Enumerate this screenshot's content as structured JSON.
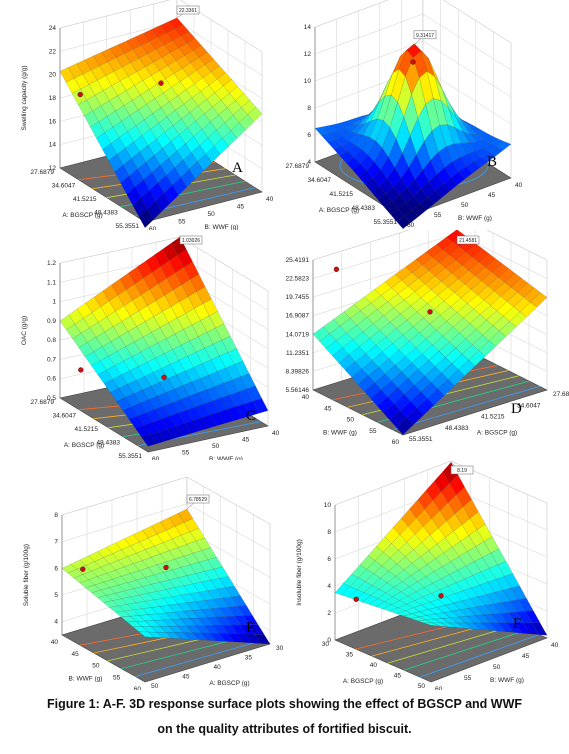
{
  "caption": {
    "line1": "Figure 1: A-F. 3D response surface plots showing the effect of BGSCP and WWF",
    "line2": "on the quality attributes of fortified biscuit."
  },
  "chart_data": [
    {
      "panel": "A",
      "type": "surface",
      "zlabel": "Swelling capacity (g/g)",
      "z_ticks": [
        "12",
        "14",
        "16",
        "18",
        "20",
        "22",
        "24"
      ],
      "zlim": [
        12,
        24
      ],
      "factor_a_label": "A: BGSCP (g)",
      "factor_a_ticks": [
        "27.6879",
        "34.6047",
        "41.5215",
        "48.4383",
        "55.3551"
      ],
      "factor_b_label": "B: WWF (g)",
      "factor_b_ticks": [
        "60",
        "55",
        "50",
        "45",
        "40"
      ],
      "corners_z": [
        11.5,
        20.3,
        18.7,
        22.3
      ],
      "curvature": 0,
      "max_flag": "22.3361",
      "design_points_z": [
        20.3,
        18.5
      ]
    },
    {
      "panel": "B",
      "type": "surface",
      "zlabel": "WAC (g/g)",
      "z_ticks": [
        "4",
        "6",
        "8",
        "10",
        "12",
        "14"
      ],
      "zlim": [
        4,
        14
      ],
      "factor_a_label": "A: BGSCP (g)",
      "factor_a_ticks": [
        "27.6879",
        "34.6047",
        "41.5215",
        "48.4383",
        "55.3551"
      ],
      "factor_b_label": "B: WWF (g)",
      "factor_b_ticks": [
        "60",
        "55",
        "50",
        "45",
        "40"
      ],
      "corners_z": [
        3.2,
        6.5,
        6.5,
        4.8
      ],
      "curvature": 7.6,
      "max_flag": "9.31417",
      "design_points_z": [
        12.0
      ]
    },
    {
      "panel": "C",
      "type": "surface",
      "zlabel": "OAC (g/g)",
      "z_ticks": [
        "0.5",
        "0.6",
        "0.7",
        "0.8",
        "0.9",
        "1",
        "1.1",
        "1.2"
      ],
      "zlim": [
        0.5,
        1.2
      ],
      "factor_a_label": "A: BGSCP (g)",
      "factor_a_ticks": [
        "27.6879",
        "34.6047",
        "41.5215",
        "48.4383",
        "55.3551"
      ],
      "factor_b_label": "B: WWF (g)",
      "factor_b_ticks": [
        "60",
        "55",
        "50",
        "45",
        "40"
      ],
      "corners_z": [
        0.53,
        0.9,
        0.58,
        1.2
      ],
      "curvature": 0,
      "max_flag": "1.03026",
      "design_points_z": [
        0.68,
        0.66
      ]
    },
    {
      "panel": "D",
      "type": "surface",
      "zlabel": "Protein (g/100g)",
      "z_ticks": [
        "5.56146",
        "8.39826",
        "11.2351",
        "14.0719",
        "16.9087",
        "19.7455",
        "22.5823",
        "25.4191"
      ],
      "zlim": [
        5.56146,
        25.4191
      ],
      "factor_a_label": "A: BGSCP (g)",
      "factor_a_ticks": [
        "27.6879",
        "34.6047",
        "41.5215",
        "48.4383",
        "55.3551"
      ],
      "factor_b_label": "B: WWF (g)",
      "factor_b_ticks": [
        "60",
        "55",
        "50",
        "45",
        "40"
      ],
      "corners_z": [
        5.6,
        14.1,
        19.7,
        23.2
      ],
      "curvature": 0,
      "max_flag": "21.4581",
      "design_points_z": [
        17.5,
        24.0
      ]
    },
    {
      "panel": "E",
      "type": "surface",
      "zlabel": "Soluble fiber (g/100g)",
      "z_ticks": [
        "4",
        "5",
        "6",
        "7",
        "8"
      ],
      "zlim": [
        3.5,
        8
      ],
      "factor_a_label": "A: BGSCP (g)",
      "factor_a_ticks": [
        "30",
        "35",
        "40",
        "45",
        "50"
      ],
      "factor_b_label": "B: WWF (g)",
      "factor_b_ticks": [
        "60",
        "55",
        "50",
        "45",
        "40"
      ],
      "corners_z": [
        5.2,
        6.0,
        3.5,
        6.8
      ],
      "curvature": 0,
      "max_flag": "6.78529",
      "design_points_z": [
        6.2,
        6.0
      ]
    },
    {
      "panel": "F",
      "type": "surface",
      "zlabel": "Insoluble fiber (g/100g)",
      "z_ticks": [
        "0",
        "2",
        "4",
        "6",
        "8",
        "10"
      ],
      "zlim": [
        0,
        10
      ],
      "factor_a_label": "A: BGSCP (g)",
      "factor_a_ticks": [
        "30",
        "35",
        "40",
        "45",
        "50"
      ],
      "factor_b_label": "B: WWF (g)",
      "factor_b_ticks": [
        "60",
        "55",
        "50",
        "45",
        "40"
      ],
      "corners_z": [
        4.2,
        3.5,
        0.2,
        9.9
      ],
      "curvature": 0,
      "max_flag": "8.19",
      "design_points_z": [
        3.2,
        3.0
      ]
    }
  ]
}
